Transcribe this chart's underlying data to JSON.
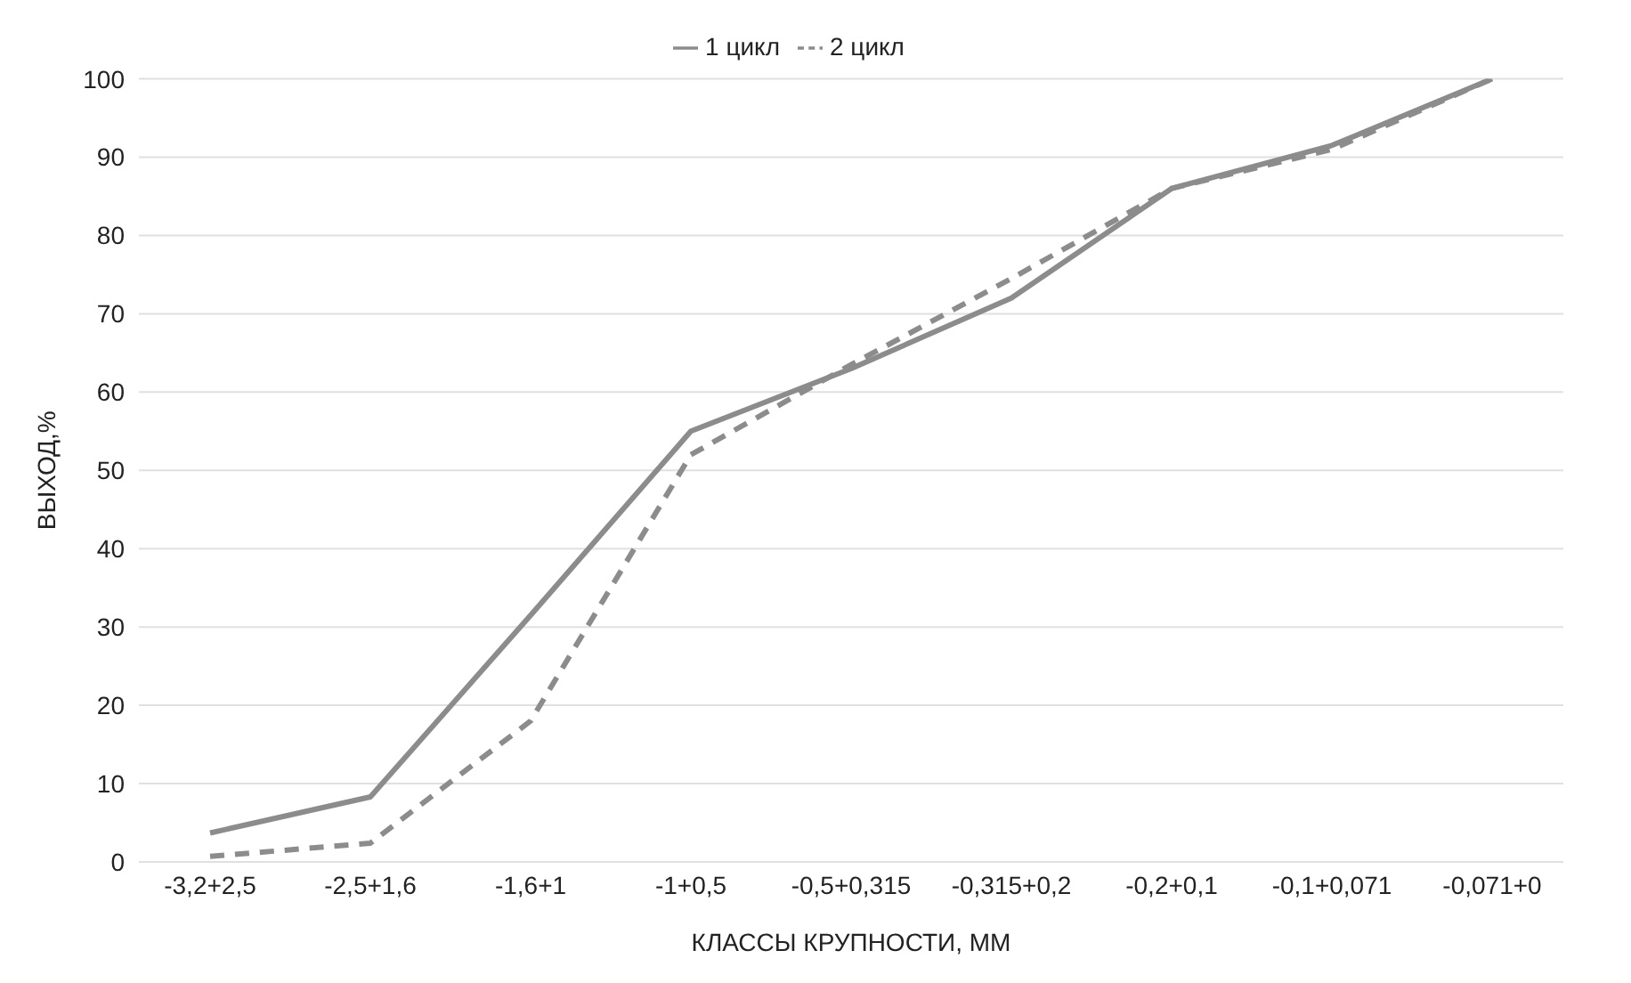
{
  "chart_data": {
    "type": "line",
    "xlabel": "КЛАССЫ КРУПНОСТИ, ММ",
    "ylabel": "ВЫХОД,%",
    "categories": [
      "-3,2+2,5",
      "-2,5+1,6",
      "-1,6+1",
      "-1+0,5",
      "-0,5+0,315",
      "-0,315+0,2",
      "-0,2+0,1",
      "-0,1+0,071",
      "-0,071+0"
    ],
    "series": [
      {
        "name": "1 цикл",
        "color": "#8c8c8c",
        "line_style": "solid",
        "values": [
          3.7,
          8.3,
          31.5,
          55,
          63,
          72,
          86,
          91.5,
          100
        ]
      },
      {
        "name": "2 цикл",
        "color": "#8c8c8c",
        "line_style": "dashed",
        "values": [
          0.7,
          2.4,
          18,
          52,
          63.5,
          74.5,
          86,
          91,
          100
        ]
      }
    ],
    "ylim": [
      0,
      100
    ],
    "yticks": [
      0,
      10,
      20,
      30,
      40,
      50,
      60,
      70,
      80,
      90,
      100
    ],
    "grid": "y",
    "legend": "top",
    "marker": "none"
  }
}
